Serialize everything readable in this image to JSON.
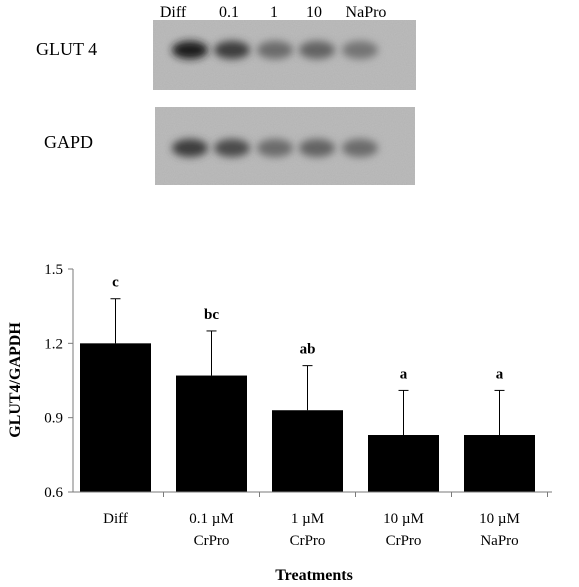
{
  "blot": {
    "lane_labels": [
      "Diff",
      "0.1",
      "1",
      "10",
      "NaPro"
    ],
    "rows": [
      {
        "label": "GLUT 4",
        "band_intensity": [
          0.95,
          0.75,
          0.45,
          0.5,
          0.4
        ]
      },
      {
        "label": "GAPD",
        "band_intensity": [
          0.75,
          0.65,
          0.45,
          0.5,
          0.45
        ]
      }
    ]
  },
  "chart_data": {
    "type": "bar",
    "categories": [
      [
        "Diff"
      ],
      [
        "0.1 µM",
        "CrPro"
      ],
      [
        "1 µM",
        "CrPro"
      ],
      [
        "10 µM",
        "CrPro"
      ],
      [
        "10 µM",
        "NaPro"
      ]
    ],
    "values": [
      1.2,
      1.07,
      0.93,
      0.83,
      0.83
    ],
    "errors": [
      0.18,
      0.18,
      0.18,
      0.18,
      0.18
    ],
    "significance_labels": [
      "c",
      "bc",
      "ab",
      "a",
      "a"
    ],
    "xlabel": "Treatments",
    "ylabel": "GLUT4/GAPDH",
    "ylim": [
      0.6,
      1.5
    ],
    "yticks": [
      "0.6",
      "0.9",
      "1.2",
      "1.5"
    ],
    "bar_color": "#000000",
    "grid": false
  }
}
